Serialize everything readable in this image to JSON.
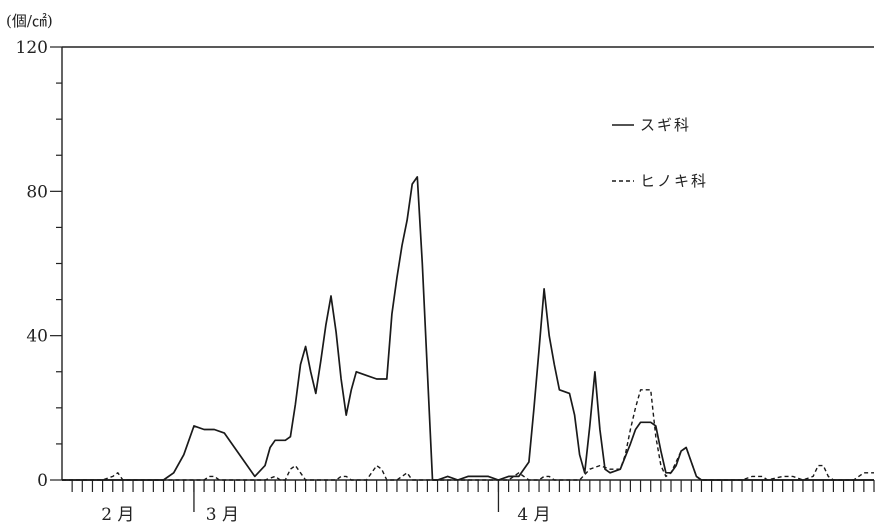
{
  "chart_data": {
    "type": "line",
    "unit_label": "(個/㎠)",
    "ylim": [
      0,
      120
    ],
    "y_ticks": [
      0,
      40,
      80,
      120
    ],
    "y_tick_labels": [
      "0",
      "40",
      "80",
      "120"
    ],
    "xlim": [
      0,
      80
    ],
    "month_labels": [
      {
        "x": 5.5,
        "label": "2 月"
      },
      {
        "x": 15.8,
        "label": "3 月"
      },
      {
        "x": 46.5,
        "label": "4 月"
      }
    ],
    "month_boundaries": [
      13,
      43
    ],
    "legend": [
      {
        "name": "スギ科",
        "style": "solid"
      },
      {
        "name": "ヒノキ科",
        "style": "dashed"
      }
    ],
    "grid": false,
    "series": [
      {
        "name": "スギ科",
        "style": "solid",
        "points": [
          [
            0,
            0
          ],
          [
            9,
            0
          ],
          [
            10,
            0
          ],
          [
            11,
            2
          ],
          [
            12,
            7
          ],
          [
            13,
            15
          ],
          [
            14,
            14
          ],
          [
            15,
            14
          ],
          [
            16,
            13
          ],
          [
            17,
            9
          ],
          [
            18,
            5
          ],
          [
            19,
            1
          ],
          [
            20,
            4
          ],
          [
            20.5,
            9
          ],
          [
            21,
            11
          ],
          [
            22,
            11
          ],
          [
            22.5,
            12
          ],
          [
            23,
            21
          ],
          [
            23.5,
            32
          ],
          [
            24,
            37
          ],
          [
            24.5,
            30
          ],
          [
            25,
            24
          ],
          [
            25.5,
            33
          ],
          [
            26,
            43
          ],
          [
            26.5,
            51
          ],
          [
            27,
            41
          ],
          [
            27.5,
            28
          ],
          [
            28,
            18
          ],
          [
            28.5,
            25
          ],
          [
            29,
            30
          ],
          [
            30,
            29
          ],
          [
            31,
            28
          ],
          [
            32,
            28
          ],
          [
            32.5,
            46
          ],
          [
            33,
            56
          ],
          [
            33.5,
            65
          ],
          [
            34,
            72
          ],
          [
            34.5,
            82
          ],
          [
            35,
            84
          ],
          [
            35.5,
            60
          ],
          [
            36,
            30
          ],
          [
            36.5,
            0
          ],
          [
            37,
            0
          ],
          [
            38,
            1
          ],
          [
            39,
            0
          ],
          [
            40,
            1
          ],
          [
            41,
            1
          ],
          [
            42,
            1
          ],
          [
            43,
            0
          ],
          [
            44,
            1
          ],
          [
            45,
            1
          ],
          [
            46,
            5
          ],
          [
            46.5,
            20
          ],
          [
            47,
            36
          ],
          [
            47.5,
            53
          ],
          [
            48,
            40
          ],
          [
            48.5,
            32
          ],
          [
            49,
            25
          ],
          [
            50,
            24
          ],
          [
            50.5,
            18
          ],
          [
            51,
            7
          ],
          [
            51.5,
            2
          ],
          [
            52,
            15
          ],
          [
            52.5,
            30
          ],
          [
            53,
            14
          ],
          [
            53.5,
            3
          ],
          [
            54,
            2
          ],
          [
            55,
            3
          ],
          [
            56,
            10
          ],
          [
            56.5,
            14
          ],
          [
            57,
            16
          ],
          [
            58,
            16
          ],
          [
            58.5,
            15
          ],
          [
            59,
            8
          ],
          [
            59.5,
            2
          ],
          [
            60,
            2
          ],
          [
            60.5,
            4
          ],
          [
            61,
            8
          ],
          [
            61.5,
            9
          ],
          [
            62,
            5
          ],
          [
            62.5,
            1
          ],
          [
            63,
            0
          ],
          [
            80,
            0
          ]
        ]
      },
      {
        "name": "ヒノキ科",
        "style": "dashed",
        "points": [
          [
            0,
            0
          ],
          [
            4,
            0
          ],
          [
            5,
            1
          ],
          [
            5.5,
            2
          ],
          [
            6,
            0
          ],
          [
            9,
            0
          ],
          [
            14,
            0
          ],
          [
            14.5,
            1
          ],
          [
            15,
            1
          ],
          [
            15.5,
            0
          ],
          [
            20,
            0
          ],
          [
            21,
            1
          ],
          [
            21.5,
            0
          ],
          [
            22,
            0
          ],
          [
            22.5,
            3
          ],
          [
            23,
            4
          ],
          [
            23.5,
            2
          ],
          [
            24,
            0
          ],
          [
            27,
            0
          ],
          [
            27.5,
            1
          ],
          [
            28,
            1
          ],
          [
            28.5,
            0
          ],
          [
            30,
            0
          ],
          [
            30.5,
            2
          ],
          [
            31,
            4
          ],
          [
            31.5,
            3
          ],
          [
            32,
            0
          ],
          [
            33,
            0
          ],
          [
            33.5,
            1
          ],
          [
            34,
            2
          ],
          [
            34.5,
            0
          ],
          [
            44,
            0
          ],
          [
            44.5,
            1
          ],
          [
            45,
            2
          ],
          [
            45.5,
            1
          ],
          [
            46,
            0
          ],
          [
            47,
            0
          ],
          [
            47.5,
            1
          ],
          [
            48,
            1
          ],
          [
            48.5,
            0
          ],
          [
            51,
            0
          ],
          [
            52,
            3
          ],
          [
            53,
            4
          ],
          [
            54,
            3
          ],
          [
            55,
            3
          ],
          [
            55.5,
            7
          ],
          [
            56,
            14
          ],
          [
            56.5,
            20
          ],
          [
            57,
            25
          ],
          [
            58,
            25
          ],
          [
            58.5,
            12
          ],
          [
            59,
            4
          ],
          [
            59.5,
            1
          ],
          [
            60,
            2
          ],
          [
            60.5,
            5
          ],
          [
            61,
            8
          ],
          [
            61.5,
            9
          ],
          [
            62,
            5
          ],
          [
            62.5,
            1
          ],
          [
            63,
            0
          ],
          [
            67,
            0
          ],
          [
            68,
            1
          ],
          [
            69,
            1
          ],
          [
            69.5,
            0
          ],
          [
            71,
            1
          ],
          [
            72,
            1
          ],
          [
            73,
            0
          ],
          [
            74,
            1
          ],
          [
            74.5,
            4
          ],
          [
            75,
            4
          ],
          [
            75.5,
            1
          ],
          [
            76,
            0
          ],
          [
            78,
            0
          ],
          [
            79,
            2
          ],
          [
            80,
            2
          ]
        ]
      }
    ]
  }
}
